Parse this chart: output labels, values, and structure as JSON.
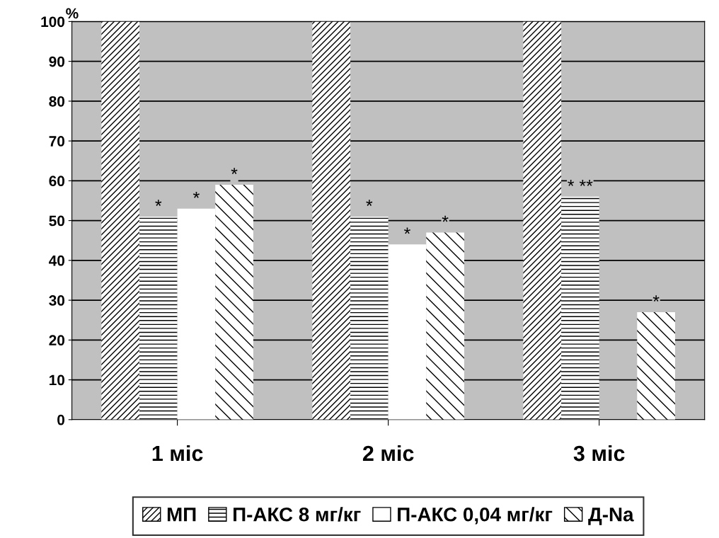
{
  "chart_data": {
    "type": "bar",
    "ylabel": "%",
    "categories": [
      "1 міс",
      "2 міс",
      "3 міс"
    ],
    "series": [
      {
        "name": "МП",
        "color": "#ffffff",
        "values": [
          100,
          100,
          100
        ]
      },
      {
        "name": "П-АКС 8 мг/кг",
        "color": "#ffffff",
        "values": [
          51,
          51,
          56
        ]
      },
      {
        "name": "П-АКС 0,04 мг/кг",
        "color": "#ffffff",
        "values": [
          53,
          44,
          0
        ]
      },
      {
        "name": "Д-Na",
        "color": "#ffffff",
        "values": [
          59,
          47,
          27
        ]
      }
    ],
    "ylim": [
      0,
      100
    ],
    "yticks": [
      0,
      10,
      20,
      30,
      40,
      50,
      60,
      70,
      80,
      90,
      100
    ],
    "grid": "y",
    "legend": "bottom",
    "annotations": [
      {
        "text": "*",
        "x": "1 міс",
        "y": 51
      },
      {
        "text": "*",
        "x": "1 міс",
        "y": 53
      },
      {
        "text": "*",
        "y": 59
      },
      {
        "text": "*",
        "x": "2 міс",
        "y": 51
      },
      {
        "text": "*",
        "x": "2 міс",
        "y": 44
      },
      {
        "text": "*",
        "y": 47
      },
      {
        "text": "* **",
        "x": "3 міс",
        "y": 56
      },
      {
        "text": "*",
        "y": 27
      }
    ]
  }
}
